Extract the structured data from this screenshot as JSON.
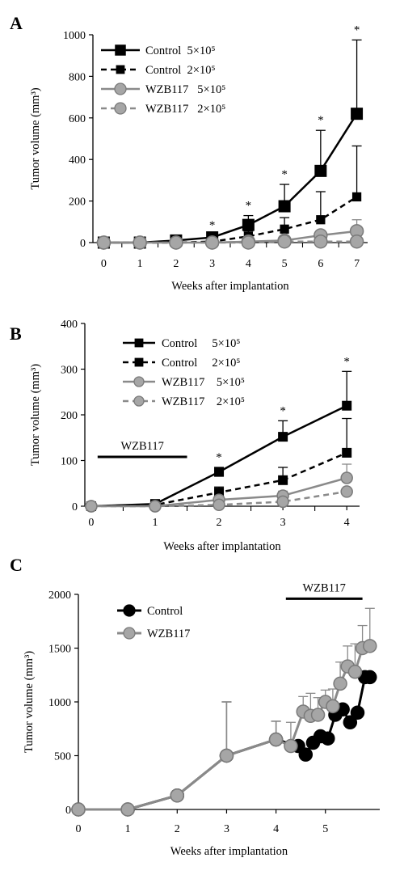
{
  "colors": {
    "black": "#000000",
    "gray": "#8a8a8a"
  },
  "chart_data": [
    {
      "panel": "A",
      "type": "line",
      "ylabel": "Tumor volume (mm³)",
      "xlabel": "Weeks after implantation",
      "x": [
        0,
        1,
        2,
        3,
        4,
        5,
        6,
        7
      ],
      "xticks": [
        "0",
        "1",
        "2",
        "3",
        "4",
        "5",
        "6",
        "7"
      ],
      "yticks": [
        "0",
        "200",
        "400",
        "600",
        "800",
        "1000"
      ],
      "ylim": [
        0,
        1000
      ],
      "series": [
        {
          "name": "Control  5×10⁵",
          "marker": "square",
          "color": "#000000",
          "dash": false,
          "values": [
            0,
            0,
            10,
            25,
            85,
            175,
            345,
            620
          ],
          "errors": [
            0,
            0,
            5,
            10,
            45,
            105,
            195,
            355
          ]
        },
        {
          "name": "Control  2×10⁵",
          "marker": "square",
          "color": "#000000",
          "dash": true,
          "values": [
            0,
            0,
            0,
            5,
            30,
            65,
            110,
            220
          ],
          "errors": [
            0,
            0,
            0,
            5,
            25,
            55,
            135,
            245
          ]
        },
        {
          "name": "WZB117   5×10⁵",
          "marker": "circle",
          "color": "#8a8a8a",
          "dash": false,
          "values": [
            0,
            0,
            0,
            0,
            5,
            10,
            35,
            55
          ],
          "errors": [
            0,
            0,
            0,
            0,
            5,
            10,
            20,
            55
          ]
        },
        {
          "name": "WZB117   2×10⁵",
          "marker": "circle",
          "color": "#8a8a8a",
          "dash": true,
          "values": [
            0,
            0,
            0,
            0,
            0,
            5,
            5,
            5
          ],
          "errors": [
            0,
            0,
            0,
            0,
            0,
            5,
            5,
            5
          ]
        }
      ],
      "significance": [
        "3",
        "4",
        "5",
        "6",
        "7"
      ],
      "star": "*"
    },
    {
      "panel": "B",
      "type": "line",
      "ylabel": "Tumor volume (mm³)",
      "xlabel": "Weeks after implantation",
      "x": [
        0,
        1,
        2,
        3,
        4
      ],
      "xticks": [
        "0",
        "1",
        "2",
        "3",
        "4"
      ],
      "yticks": [
        "0",
        "100",
        "200",
        "300",
        "400"
      ],
      "ylim": [
        0,
        400
      ],
      "series": [
        {
          "name": "Control     5×10⁵",
          "marker": "square",
          "color": "#000000",
          "dash": false,
          "values": [
            0,
            5,
            75,
            152,
            220
          ],
          "errors": [
            0,
            5,
            10,
            35,
            75
          ]
        },
        {
          "name": "Control     2×10⁵",
          "marker": "square",
          "color": "#000000",
          "dash": true,
          "values": [
            0,
            3,
            30,
            57,
            117
          ],
          "errors": [
            0,
            3,
            12,
            28,
            75
          ]
        },
        {
          "name": "WZB117    5×10⁵",
          "marker": "circle",
          "color": "#8a8a8a",
          "dash": false,
          "values": [
            0,
            0,
            14,
            23,
            62
          ],
          "errors": [
            0,
            0,
            6,
            10,
            30
          ]
        },
        {
          "name": "WZB117    2×10⁵",
          "marker": "circle",
          "color": "#8a8a8a",
          "dash": true,
          "values": [
            0,
            0,
            3,
            10,
            32
          ],
          "errors": [
            0,
            0,
            3,
            5,
            5
          ]
        }
      ],
      "significance": [
        "2",
        "3",
        "4"
      ],
      "star": "*",
      "treatment": {
        "label": "WZB117",
        "from": 0.1,
        "to": 1.5,
        "y": 108
      }
    },
    {
      "panel": "C",
      "type": "line",
      "ylabel": "Tumor volume (mm³)",
      "xlabel": "Weeks after implantation",
      "xticks": [
        "0",
        "1",
        "2",
        "3",
        "4",
        "5"
      ],
      "yticks": [
        "0",
        "500",
        "1000",
        "1500",
        "2000"
      ],
      "ylim": [
        0,
        2000
      ],
      "series": [
        {
          "name": "Control",
          "marker": "circle",
          "color": "#000000",
          "dash": false,
          "x": [
            0,
            1,
            2,
            3,
            4,
            4.45,
            4.6,
            4.75,
            4.9,
            5.05,
            5.2,
            5.35,
            5.5,
            5.65,
            5.8,
            5.9
          ],
          "values": [
            0,
            0,
            130,
            500,
            650,
            590,
            510,
            620,
            680,
            660,
            880,
            930,
            810,
            900,
            1230,
            1230
          ],
          "errors": [
            0,
            0,
            45,
            500,
            170,
            0,
            0,
            0,
            0,
            0,
            0,
            0,
            0,
            0,
            0,
            0
          ]
        },
        {
          "name": "WZB117",
          "marker": "circle",
          "color": "#8a8a8a",
          "dash": false,
          "x": [
            0,
            1,
            2,
            3,
            4,
            4.3,
            4.55,
            4.7,
            4.85,
            5.0,
            5.15,
            5.3,
            5.45,
            5.6,
            5.75,
            5.9
          ],
          "values": [
            0,
            0,
            130,
            500,
            650,
            590,
            910,
            870,
            880,
            1000,
            960,
            1170,
            1330,
            1280,
            1500,
            1520
          ],
          "errors": [
            0,
            0,
            45,
            500,
            170,
            220,
            140,
            210,
            160,
            110,
            160,
            200,
            190,
            260,
            210,
            350
          ]
        }
      ],
      "treatment": {
        "label": "WZB117",
        "from": 4.2,
        "to": 5.75,
        "y": 1960
      }
    }
  ]
}
